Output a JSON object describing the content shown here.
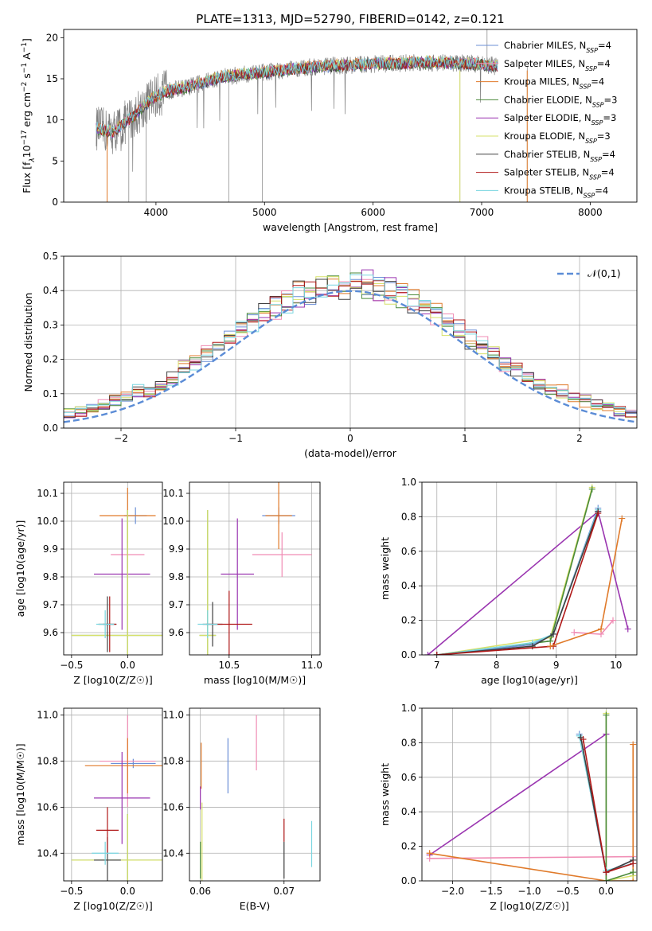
{
  "colors": {
    "chabrier_miles": "#6b8fd6",
    "salpeter_miles": "#f08cb4",
    "kroupa_miles": "#e07a2a",
    "chabrier_elodie": "#4a8a3a",
    "salpeter_elodie": "#9a35b0",
    "kroupa_elodie": "#d6e06a",
    "chabrier_stelib": "#404040",
    "salpeter_stelib": "#b01818",
    "kroupa_stelib": "#7ad6e0",
    "spectrum": "#7f7f7f",
    "normal": "#5b8cd6"
  },
  "chart_data": [
    {
      "id": "spectrum",
      "type": "line",
      "title": "PLATE=1313, MJD=52790, FIBERID=0142, z=0.121",
      "xlabel": "wavelength [Angstrom, rest frame]",
      "ylabel": "Flux [f_λ 10^-17 erg cm^-2 s^-1 A^-1]",
      "xlim": [
        3150,
        8430
      ],
      "ylim": [
        0,
        21
      ],
      "xticks": [
        4000,
        5000,
        6000,
        7000,
        8000
      ],
      "yticks": [
        0,
        5,
        10,
        15,
        20
      ],
      "legend_position": "right",
      "series": [
        {
          "name": "Chabrier MILES, N_SSP=4",
          "key": "chabrier_miles"
        },
        {
          "name": "Salpeter MILES, N_SSP=4",
          "key": "salpeter_miles"
        },
        {
          "name": "Kroupa MILES, N_SSP=4",
          "key": "kroupa_miles"
        },
        {
          "name": "Chabrier ELODIE, N_SSP=3",
          "key": "chabrier_elodie"
        },
        {
          "name": "Salpeter ELODIE, N_SSP=3",
          "key": "salpeter_elodie"
        },
        {
          "name": "Kroupa ELODIE, N_SSP=3",
          "key": "kroupa_elodie"
        },
        {
          "name": "Chabrier STELIB, N_SSP=4",
          "key": "chabrier_stelib"
        },
        {
          "name": "Salpeter STELIB, N_SSP=4",
          "key": "salpeter_stelib"
        },
        {
          "name": "Kroupa STELIB, N_SSP=4",
          "key": "kroupa_stelib"
        }
      ],
      "continuum": [
        [
          3450,
          9.0
        ],
        [
          3600,
          8.5
        ],
        [
          3800,
          10.5
        ],
        [
          3950,
          12.5
        ],
        [
          4100,
          13.5
        ],
        [
          4300,
          14.0
        ],
        [
          4600,
          15.2
        ],
        [
          5000,
          15.8
        ],
        [
          5500,
          16.5
        ],
        [
          6000,
          16.8
        ],
        [
          6500,
          17.0
        ],
        [
          7000,
          16.8
        ],
        [
          7150,
          16.5
        ]
      ]
    },
    {
      "id": "residuals",
      "type": "step",
      "xlabel": "(data-model)/error",
      "ylabel": "Normed distribution",
      "xlim": [
        -2.5,
        2.5
      ],
      "ylim": [
        0,
        0.5
      ],
      "xticks": [
        -2,
        -1,
        0,
        1,
        2
      ],
      "yticks": [
        0.0,
        0.1,
        0.2,
        0.3,
        0.4,
        0.5
      ],
      "legend": [
        {
          "label": "𝒩(0,1)",
          "key": "normal"
        }
      ],
      "bin_width": 0.1
    },
    {
      "id": "age_vs_Z",
      "type": "errorbar",
      "xlabel": "Z [log10(Z/Z☉)]",
      "ylabel": "age [log10(age/yr)]",
      "xlim": [
        -0.57,
        0.31
      ],
      "ylim": [
        9.52,
        10.14
      ],
      "xticks": [
        -0.5,
        0.0
      ],
      "yticks": [
        9.6,
        9.7,
        9.8,
        9.9,
        10.0,
        10.1
      ],
      "points": [
        {
          "key": "chabrier_miles",
          "x": 0.07,
          "y": 10.02,
          "xerr": 0.1,
          "yerr": 0.03
        },
        {
          "key": "salpeter_miles",
          "x": 0.0,
          "y": 9.88,
          "xerr": 0.15,
          "yerr": 0.05
        },
        {
          "key": "kroupa_miles",
          "x": 0.0,
          "y": 10.02,
          "xerr": 0.25,
          "yerr": 0.1
        },
        {
          "key": "chabrier_elodie",
          "x": 0.0,
          "y": 9.59,
          "xerr": 0.5,
          "yerr": 0.45
        },
        {
          "key": "salpeter_elodie",
          "x": -0.05,
          "y": 9.81,
          "xerr": 0.25,
          "yerr": 0.2
        },
        {
          "key": "kroupa_elodie",
          "x": 0.0,
          "y": 9.59,
          "xerr": 0.5,
          "yerr": 0.45
        },
        {
          "key": "chabrier_stelib",
          "x": -0.18,
          "y": 9.63,
          "xerr": 0.08,
          "yerr": 0.1
        },
        {
          "key": "salpeter_stelib",
          "x": -0.16,
          "y": 9.63,
          "xerr": 0.06,
          "yerr": 0.1
        },
        {
          "key": "kroupa_stelib",
          "x": -0.2,
          "y": 9.63,
          "xerr": 0.08,
          "yerr": 0.05
        }
      ]
    },
    {
      "id": "age_vs_mass",
      "type": "errorbar",
      "xlabel": "mass [log10(M/M☉)]",
      "ylabel": "",
      "xlim": [
        10.26,
        11.05
      ],
      "ylim": [
        9.52,
        10.14
      ],
      "xticks": [
        10.5,
        11.0
      ],
      "yticks": [
        9.6,
        9.7,
        9.8,
        9.9,
        10.0,
        10.1
      ],
      "points": [
        {
          "key": "chabrier_miles",
          "x": 10.8,
          "y": 10.02,
          "xerr": 0.1,
          "yerr": 0.03
        },
        {
          "key": "salpeter_miles",
          "x": 10.82,
          "y": 9.88,
          "xerr": 0.18,
          "yerr": 0.08
        },
        {
          "key": "kroupa_miles",
          "x": 10.8,
          "y": 10.02,
          "xerr": 0.08,
          "yerr": 0.12
        },
        {
          "key": "chabrier_elodie",
          "x": 10.37,
          "y": 9.59,
          "xerr": 0.05,
          "yerr": 0.45
        },
        {
          "key": "salpeter_elodie",
          "x": 10.55,
          "y": 9.81,
          "xerr": 0.1,
          "yerr": 0.2
        },
        {
          "key": "kroupa_elodie",
          "x": 10.37,
          "y": 9.59,
          "xerr": 0.05,
          "yerr": 0.45
        },
        {
          "key": "chabrier_stelib",
          "x": 10.4,
          "y": 9.63,
          "xerr": 0.06,
          "yerr": 0.08
        },
        {
          "key": "salpeter_stelib",
          "x": 10.5,
          "y": 9.63,
          "xerr": 0.14,
          "yerr": 0.12
        },
        {
          "key": "kroupa_stelib",
          "x": 10.37,
          "y": 9.63,
          "xerr": 0.06,
          "yerr": 0.05
        }
      ]
    },
    {
      "id": "massweight_vs_age",
      "type": "line",
      "xlabel": "age [log10(age/yr)]",
      "ylabel": "mass weight",
      "xlim": [
        6.75,
        10.35
      ],
      "ylim": [
        0,
        1
      ],
      "xticks": [
        7,
        8,
        9,
        10
      ],
      "yticks": [
        0.0,
        0.2,
        0.4,
        0.6,
        0.8,
        1.0
      ],
      "series": [
        {
          "key": "salpeter_elodie",
          "x": [
            6.85,
            9.7,
            10.2
          ],
          "y": [
            0.0,
            0.83,
            0.15
          ]
        },
        {
          "key": "kroupa_elodie",
          "x": [
            7.0,
            8.9,
            9.6
          ],
          "y": [
            0.0,
            0.1,
            0.97
          ]
        },
        {
          "key": "chabrier_elodie",
          "x": [
            7.0,
            8.9,
            9.6
          ],
          "y": [
            0.0,
            0.08,
            0.96
          ]
        },
        {
          "key": "chabrier_miles",
          "x": [
            7.0,
            8.6,
            8.95,
            9.7
          ],
          "y": [
            0.0,
            0.06,
            0.12,
            0.85
          ]
        },
        {
          "key": "kroupa_stelib",
          "x": [
            7.0,
            8.6,
            8.95,
            9.7
          ],
          "y": [
            0.0,
            0.07,
            0.12,
            0.84
          ]
        },
        {
          "key": "chabrier_stelib",
          "x": [
            7.0,
            8.6,
            8.95,
            9.7
          ],
          "y": [
            0.0,
            0.05,
            0.12,
            0.83
          ]
        },
        {
          "key": "salpeter_stelib",
          "x": [
            7.0,
            8.95,
            9.7
          ],
          "y": [
            0.0,
            0.05,
            0.82
          ]
        },
        {
          "key": "salpeter_miles",
          "x": [
            9.3,
            9.75,
            9.95
          ],
          "y": [
            0.13,
            0.12,
            0.2
          ]
        },
        {
          "key": "kroupa_miles",
          "x": [
            8.9,
            9.75,
            10.1
          ],
          "y": [
            0.05,
            0.15,
            0.79
          ]
        }
      ]
    },
    {
      "id": "mass_vs_Z",
      "type": "errorbar",
      "xlabel": "Z [log10(Z/Z☉)]",
      "ylabel": "mass [log10(M/M☉)]",
      "xlim": [
        -0.57,
        0.31
      ],
      "ylim": [
        10.28,
        11.03
      ],
      "xticks": [
        -0.5,
        0.0
      ],
      "yticks": [
        10.4,
        10.6,
        10.8,
        11.0
      ],
      "points": [
        {
          "key": "chabrier_miles",
          "x": 0.05,
          "y": 10.79,
          "xerr": 0.2,
          "yerr": 0.02
        },
        {
          "key": "salpeter_miles",
          "x": 0.0,
          "y": 10.8,
          "xerr": 0.25,
          "yerr": 0.2
        },
        {
          "key": "kroupa_miles",
          "x": 0.0,
          "y": 10.78,
          "xerr": 0.38,
          "yerr": 0.12
        },
        {
          "key": "chabrier_elodie",
          "x": 0.0,
          "y": 10.37,
          "xerr": 0.5,
          "yerr": 0.2
        },
        {
          "key": "salpeter_elodie",
          "x": -0.05,
          "y": 10.64,
          "xerr": 0.25,
          "yerr": 0.2
        },
        {
          "key": "kroupa_elodie",
          "x": 0.0,
          "y": 10.37,
          "xerr": 0.5,
          "yerr": 0.2
        },
        {
          "key": "chabrier_stelib",
          "x": -0.18,
          "y": 10.37,
          "xerr": 0.12,
          "yerr": 0.1
        },
        {
          "key": "salpeter_stelib",
          "x": -0.18,
          "y": 10.5,
          "xerr": 0.1,
          "yerr": 0.1
        },
        {
          "key": "kroupa_stelib",
          "x": -0.2,
          "y": 10.4,
          "xerr": 0.12,
          "yerr": 0.05
        }
      ]
    },
    {
      "id": "mass_vs_ebv",
      "type": "errorbar",
      "xlabel": "E(B-V)",
      "ylabel": "",
      "xlim": [
        0.0587,
        0.0743
      ],
      "ylim": [
        10.28,
        11.03
      ],
      "xticks": [
        0.06,
        0.07
      ],
      "yticks": [
        10.4,
        10.6,
        10.8,
        11.0
      ],
      "points": [
        {
          "key": "chabrier_miles",
          "x": 0.0633,
          "y": 10.78,
          "xerr": 0,
          "yerr": 0.12
        },
        {
          "key": "salpeter_miles",
          "x": 0.0667,
          "y": 10.88,
          "xerr": 0,
          "yerr": 0.12
        },
        {
          "key": "kroupa_miles",
          "x": 0.0601,
          "y": 10.78,
          "xerr": 0,
          "yerr": 0.1
        },
        {
          "key": "chabrier_elodie",
          "x": 0.06,
          "y": 10.37,
          "xerr": 0,
          "yerr": 0.08
        },
        {
          "key": "salpeter_elodie",
          "x": 0.06,
          "y": 10.64,
          "xerr": 0,
          "yerr": 0.05
        },
        {
          "key": "kroupa_elodie",
          "x": 0.0602,
          "y": 10.45,
          "xerr": 0,
          "yerr": 0.17
        },
        {
          "key": "chabrier_stelib",
          "x": 0.07,
          "y": 10.37,
          "xerr": 0,
          "yerr": 0.08
        },
        {
          "key": "salpeter_stelib",
          "x": 0.07,
          "y": 10.5,
          "xerr": 0,
          "yerr": 0.05
        },
        {
          "key": "kroupa_stelib",
          "x": 0.0733,
          "y": 10.44,
          "xerr": 0,
          "yerr": 0.1
        }
      ]
    },
    {
      "id": "massweight_vs_Z",
      "type": "line",
      "xlabel": "Z [log10(Z/Z☉)]",
      "ylabel": "mass weight",
      "xlim": [
        -2.4,
        0.4
      ],
      "ylim": [
        0,
        1
      ],
      "xticks": [
        -2.0,
        -1.5,
        -1.0,
        -0.5,
        0.0
      ],
      "yticks": [
        0.0,
        0.2,
        0.4,
        0.6,
        0.8,
        1.0
      ],
      "series": [
        {
          "key": "salpeter_elodie",
          "x": [
            -2.3,
            0.0,
            0.0
          ],
          "y": [
            0.15,
            0.85,
            0.85
          ]
        },
        {
          "key": "salpeter_miles",
          "x": [
            -2.3,
            0.35
          ],
          "y": [
            0.13,
            0.14
          ]
        },
        {
          "key": "kroupa_miles",
          "x": [
            -2.3,
            0.0,
            0.35,
            0.35
          ],
          "y": [
            0.16,
            0.0,
            0.0,
            0.79
          ]
        },
        {
          "key": "kroupa_elodie",
          "x": [
            0.0,
            0.0,
            0.35
          ],
          "y": [
            0.97,
            0.0,
            0.03
          ]
        },
        {
          "key": "chabrier_elodie",
          "x": [
            0.0,
            0.0,
            0.35
          ],
          "y": [
            0.96,
            0.0,
            0.05
          ]
        },
        {
          "key": "chabrier_miles",
          "x": [
            -0.35,
            0.0,
            0.35
          ],
          "y": [
            0.85,
            0.05,
            0.12
          ]
        },
        {
          "key": "kroupa_stelib",
          "x": [
            -0.35,
            0.0,
            0.35
          ],
          "y": [
            0.84,
            0.06,
            0.1
          ]
        },
        {
          "key": "chabrier_stelib",
          "x": [
            -0.33,
            0.0,
            0.35
          ],
          "y": [
            0.83,
            0.05,
            0.12
          ]
        },
        {
          "key": "salpeter_stelib",
          "x": [
            -0.3,
            0.0,
            0.35
          ],
          "y": [
            0.82,
            0.05,
            0.1
          ]
        }
      ]
    }
  ]
}
